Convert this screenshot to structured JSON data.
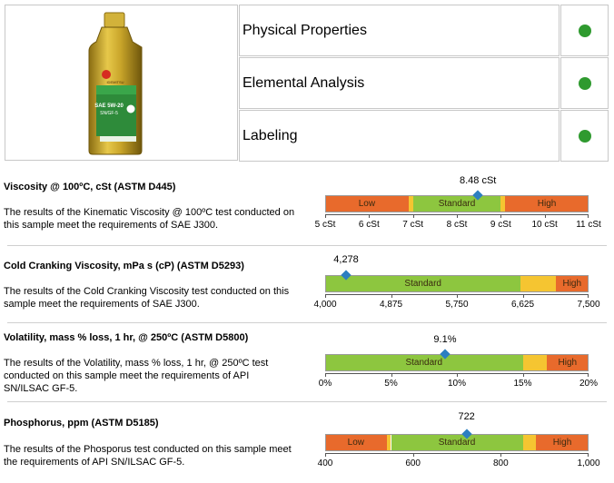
{
  "header": {
    "properties": [
      {
        "label": "Physical Properties",
        "status": "pass",
        "color": "#2f9a2f"
      },
      {
        "label": "Elemental Analysis",
        "status": "pass",
        "color": "#2f9a2f"
      },
      {
        "label": "Labeling",
        "status": "pass",
        "color": "#2f9a2f"
      }
    ],
    "bottle": {
      "brand": "IDEMITSU",
      "grade": "SAE 5W-20",
      "spec": "SN/GF-5"
    }
  },
  "colors": {
    "low": "#e86a2c",
    "standard": "#8dc63f",
    "caution": "#f5c531",
    "marker": "#2d7fc1"
  },
  "sections": [
    {
      "title": "Viscosity @ 100ºC, cSt (ASTM D445)",
      "description": "The results of the Kinematic Viscosity @ 100ºC test conducted on this sample meet the requirements of SAE J300.",
      "value": 8.48,
      "value_label": "8.48 cSt",
      "range": [
        5,
        11
      ],
      "ticks": [
        "5 cSt",
        "6 cSt",
        "7 cSt",
        "8 cSt",
        "9 cSt",
        "10 cSt",
        "11 cSt"
      ],
      "tick_values": [
        5,
        6,
        7,
        8,
        9,
        10,
        11
      ],
      "segments": [
        {
          "label": "Low",
          "from": 5,
          "to": 6.9,
          "kind": "low"
        },
        {
          "label": "",
          "from": 6.9,
          "to": 7.0,
          "kind": "caution"
        },
        {
          "label": "Standard",
          "from": 7.0,
          "to": 9.0,
          "kind": "standard"
        },
        {
          "label": "",
          "from": 9.0,
          "to": 9.1,
          "kind": "caution"
        },
        {
          "label": "High",
          "from": 9.1,
          "to": 11,
          "kind": "low"
        }
      ]
    },
    {
      "title": "Cold Cranking Viscosity, mPa s (cP) (ASTM D5293)",
      "description": "The results of the Cold Cranking Viscosity test conducted on this sample meet the requirements of SAE J300.",
      "value": 4278,
      "value_label": "4,278",
      "range": [
        4000,
        7500
      ],
      "ticks": [
        "4,000",
        "4,875",
        "5,750",
        "6,625",
        "7,500"
      ],
      "tick_values": [
        4000,
        4875,
        5750,
        6625,
        7500
      ],
      "segments": [
        {
          "label": "Standard",
          "from": 4000,
          "to": 6600,
          "kind": "standard"
        },
        {
          "label": "",
          "from": 6600,
          "to": 7060,
          "kind": "caution"
        },
        {
          "label": "High",
          "from": 7060,
          "to": 7500,
          "kind": "low"
        }
      ]
    },
    {
      "title": "Volatility, mass % loss, 1 hr, @ 250ºC (ASTM D5800)",
      "description": "The results of the Volatility, mass % loss, 1 hr, @ 250ºC test conducted on this sample meet the requirements of API SN/ILSAC GF-5.",
      "value": 9.1,
      "value_label": "9.1%",
      "range": [
        0,
        20
      ],
      "ticks": [
        "0%",
        "5%",
        "10%",
        "15%",
        "20%"
      ],
      "tick_values": [
        0,
        5,
        10,
        15,
        20
      ],
      "segments": [
        {
          "label": "Standard",
          "from": 0,
          "to": 15,
          "kind": "standard"
        },
        {
          "label": "",
          "from": 15,
          "to": 16.8,
          "kind": "caution"
        },
        {
          "label": "High",
          "from": 16.8,
          "to": 20,
          "kind": "low"
        }
      ]
    },
    {
      "title": "Phosphorus, ppm (ASTM D5185)",
      "description": "The results of the Phosporus test conducted on this sample meet the requirements of API SN/ILSAC GF-5.",
      "value": 722,
      "value_label": "722",
      "range": [
        400,
        1000
      ],
      "ticks": [
        "400",
        "600",
        "800",
        "1,000"
      ],
      "tick_values": [
        400,
        600,
        800,
        1000
      ],
      "segments": [
        {
          "label": "Low",
          "from": 400,
          "to": 540,
          "kind": "low"
        },
        {
          "label": "",
          "from": 540,
          "to": 550,
          "kind": "caution"
        },
        {
          "label": "Standard",
          "from": 550,
          "to": 850,
          "kind": "standard"
        },
        {
          "label": "",
          "from": 850,
          "to": 880,
          "kind": "caution"
        },
        {
          "label": "High",
          "from": 880,
          "to": 1000,
          "kind": "low"
        }
      ]
    }
  ]
}
